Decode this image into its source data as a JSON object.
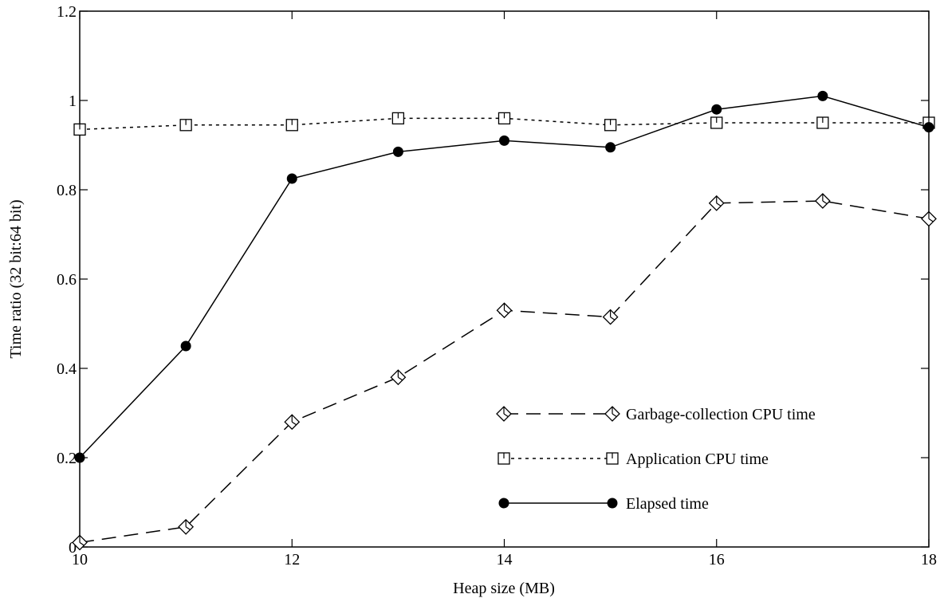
{
  "chart_data": {
    "type": "line",
    "title": "",
    "xlabel": "Heap size (MB)",
    "ylabel": "Time ratio (32 bit:64 bit)",
    "xlim": [
      10,
      18
    ],
    "ylim": [
      0,
      1.2
    ],
    "x_ticks": [
      10,
      12,
      14,
      16,
      18
    ],
    "x_tick_labels": [
      "10",
      "12",
      "14",
      "16",
      "18"
    ],
    "y_ticks": [
      0,
      0.2,
      0.4,
      0.6,
      0.8,
      1,
      1.2
    ],
    "y_tick_labels": [
      "0",
      "0.2",
      "0.4",
      "0.6",
      "0.8",
      "1",
      "1.2"
    ],
    "grid": false,
    "legend_position": "lower-right",
    "x": [
      10,
      11,
      12,
      13,
      14,
      15,
      16,
      17,
      18
    ],
    "series": [
      {
        "name": "Garbage-collection CPU time",
        "values": [
          0.01,
          0.045,
          0.28,
          0.38,
          0.53,
          0.515,
          0.77,
          0.775,
          0.735
        ],
        "marker": "diamond",
        "line_style": "dashed",
        "color": "#000000"
      },
      {
        "name": "Application CPU time",
        "values": [
          0.935,
          0.945,
          0.945,
          0.96,
          0.96,
          0.945,
          0.95,
          0.95,
          0.95
        ],
        "marker": "square",
        "line_style": "dotted",
        "color": "#000000"
      },
      {
        "name": "Elapsed time",
        "values": [
          0.2,
          0.45,
          0.825,
          0.885,
          0.91,
          0.895,
          0.98,
          1.01,
          0.94
        ],
        "marker": "filled-circle",
        "line_style": "solid",
        "color": "#000000"
      }
    ]
  }
}
